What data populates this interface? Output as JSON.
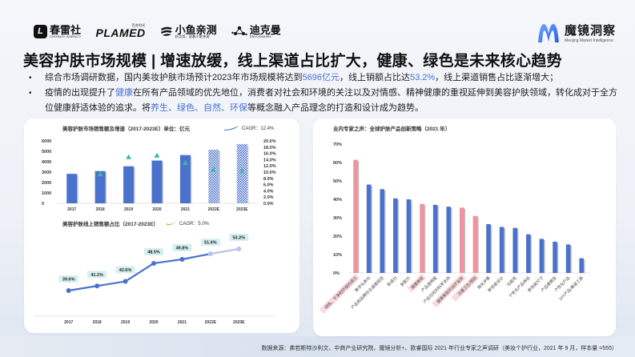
{
  "header": {
    "partner_logos": [
      {
        "name": "春雷社",
        "sub": "CHUNLEI AGENCY",
        "icon": "L"
      },
      {
        "name": "PLAMED",
        "sub": "百合时光"
      },
      {
        "name": "小鱼亲测",
        "sub": "好点用，说着小鱼亲测"
      },
      {
        "name": "迪克曼",
        "sub": "DIECKMANN"
      }
    ],
    "brand": {
      "cn": "魔镜洞察",
      "en": "Meojing Market Intelligence"
    }
  },
  "title": "美容护肤市场规模 | 增速放缓，线上渠道占比扩大，健康、绿色是未来核心趋势",
  "bullets": [
    {
      "parts": [
        {
          "t": "综合市场调研数据，国内美妆护肤市场预计2023年市场规模将达到",
          "hl": false
        },
        {
          "t": "5696亿元",
          "hl": true
        },
        {
          "t": "，线上销额占比达",
          "hl": false
        },
        {
          "t": "53.2%",
          "hl": true
        },
        {
          "t": "，线上渠道销售占比逐渐增大；",
          "hl": false
        }
      ]
    },
    {
      "parts": [
        {
          "t": "疫情的出现提升了",
          "hl": false
        },
        {
          "t": "健康",
          "hl": true
        },
        {
          "t": "在所有产品领域的优先地位，消费者对社会和环境的关注以及对情感、精神健康的重视延伸到美容护肤领域，转化成对于全方位健康舒适体验的追求。将",
          "hl": false
        },
        {
          "t": "养生、绿色、自然、环保",
          "hl": true
        },
        {
          "t": "等概念融入产品理念的打造和设计成为趋势。",
          "hl": false
        }
      ]
    }
  ],
  "colors": {
    "bar": "#4a72cc",
    "pink": "#f0939d",
    "triangle": "#3cb8a8",
    "highlight": "#4a6fd8",
    "line_est": "#b9c3e4",
    "label_bg": "#d4f0f0",
    "cagr_orange": "#f0a040"
  },
  "source": "数据来源：弗若斯特沙利文、中商产业研究院、魔镜分析+、欧睿国际 2021 年行业专家之声调研（美妆个护行业，2021 年 9 月，样本量 =555）",
  "chart_data": [
    {
      "type": "bar",
      "title": "美容护肤市场销售额及增速（2017-2023E）单位：亿元",
      "legend": "CAGR：12.4%",
      "categories": [
        "2017",
        "2018",
        "2019",
        "2020",
        "2021",
        "2022E",
        "2023E"
      ],
      "series": [
        {
          "name": "销售额",
          "axis": "left",
          "values": [
            2830,
            3100,
            3560,
            4110,
            4640,
            5150,
            5696
          ],
          "estimated": [
            false,
            false,
            false,
            false,
            false,
            true,
            true
          ]
        },
        {
          "name": "增速",
          "axis": "right",
          "marker": "triangle",
          "values": [
            9.3,
            14.8,
            15.3,
            12.9,
            10.8,
            10.3
          ]
        }
      ],
      "y_left": {
        "ticks": [
          "0",
          "1000",
          "2000",
          "3000",
          "4000",
          "5000",
          "6000"
        ],
        "range": [
          0,
          6000
        ]
      },
      "y_right": {
        "ticks": [
          "0.0%",
          "2.0%",
          "4.0%",
          "6.0%",
          "8.0%",
          "10.0%",
          "12.0%",
          "14.0%",
          "16.0%",
          "18.0%",
          "20.0%"
        ],
        "range": [
          0,
          20
        ]
      },
      "growth_categories": [
        "2018",
        "2019",
        "2020",
        "2021",
        "2022E",
        "2023E"
      ]
    },
    {
      "type": "line",
      "title": "美容护肤线上销售额占比（2017-2023E）",
      "legend": "CAGR：5.0%",
      "categories": [
        "2017",
        "2018",
        "2019",
        "2020",
        "2021",
        "2022E",
        "2023E"
      ],
      "values": [
        39.6,
        41.1,
        42.6,
        48.5,
        49.8,
        51.6,
        53.2
      ],
      "labels": [
        "39.6%",
        "41.1%",
        "42.6%",
        "48.5%",
        "49.8%",
        "51.6%",
        "53.2%"
      ],
      "estimated_from_index": 5
    },
    {
      "type": "bar",
      "title": "业内专家之声：全球护肤产品创新策略（2021 年）",
      "y_ticks": [
        "0%",
        "10%",
        "20%",
        "30%",
        "40%",
        "50%",
        "60%",
        "70%"
      ],
      "ylim": [
        0,
        70
      ],
      "categories": [
        "绿色、干净和环保的成分",
        "数字化参与",
        "产品和品牌符合道德规范",
        "新成分",
        "新配方",
        "健康美容",
        "产品透明度",
        "产品功效的科学支持",
        "健康美容的治疗益处",
        "注重卫生/预防",
        "简化步骤",
        "新包装设计",
        "功能性",
        "个性化产品体验",
        "新包装尺寸",
        "产品便携性",
        "个性化产品",
        "DIY产品/美容工具"
      ],
      "values": [
        61.5,
        48,
        45.5,
        40.5,
        40,
        37.5,
        37,
        36,
        35.5,
        31,
        26.5,
        25,
        24.5,
        21,
        18.5,
        17,
        15.5,
        8
      ],
      "highlighted": [
        true,
        false,
        false,
        false,
        false,
        true,
        false,
        false,
        true,
        true,
        false,
        false,
        false,
        false,
        false,
        false,
        false,
        false
      ]
    }
  ]
}
